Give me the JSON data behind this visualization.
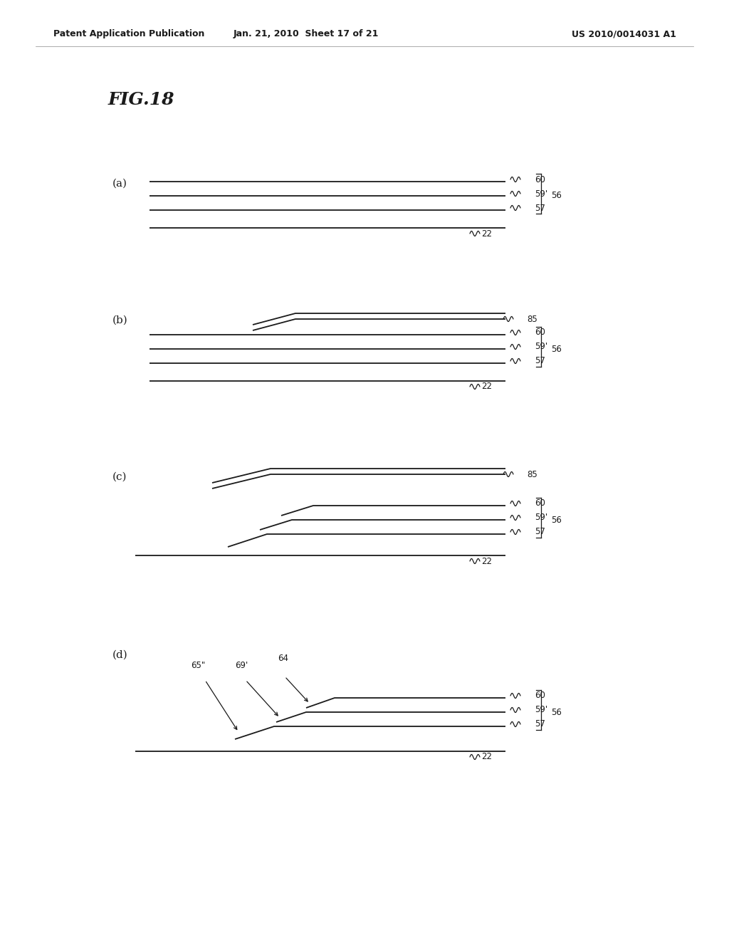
{
  "header_left": "Patent Application Publication",
  "header_mid": "Jan. 21, 2010  Sheet 17 of 21",
  "header_right": "US 2010/0014031 A1",
  "fig_title": "FIG.18",
  "bg_color": "#ffffff",
  "line_color": "#1a1a1a",
  "lw": 1.3,
  "panel_label_fontsize": 11,
  "ref_fontsize": 9,
  "header_fontsize": 9,
  "fig_title_fontsize": 18
}
